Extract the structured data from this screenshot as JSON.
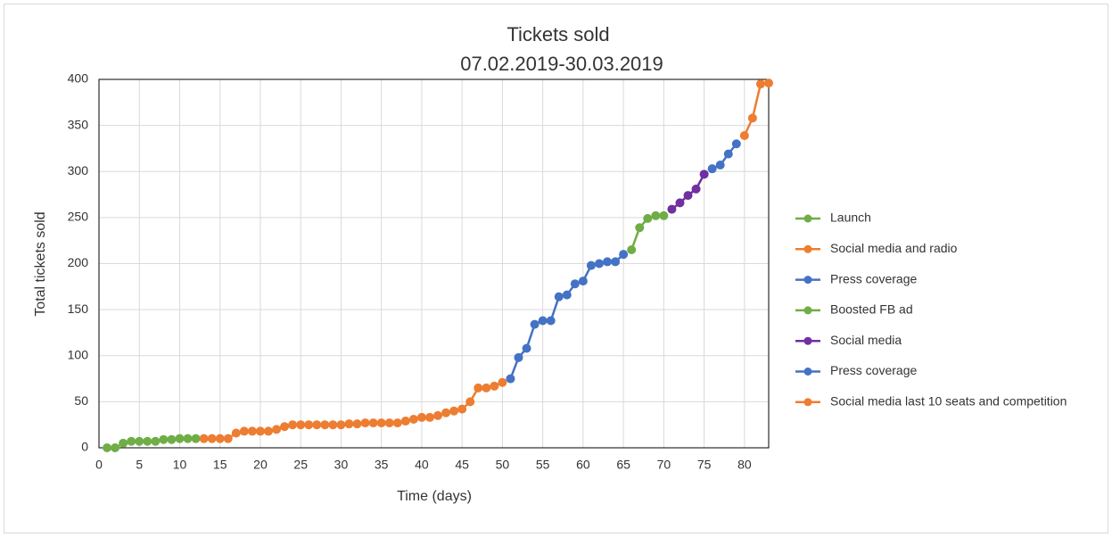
{
  "chart_data": {
    "type": "line",
    "title": "Tickets sold",
    "subtitle": "07.02.2019-30.03.2019",
    "x_label": "Time (days)",
    "y_label": "Total tickets sold",
    "xlim": [
      0,
      83
    ],
    "xticks": [
      0,
      5,
      10,
      15,
      20,
      25,
      30,
      35,
      40,
      45,
      50,
      55,
      60,
      65,
      70,
      75,
      80
    ],
    "ylim": [
      0,
      400
    ],
    "yticks": [
      0,
      50,
      100,
      150,
      200,
      250,
      300,
      350,
      400
    ],
    "grid": true,
    "legend": "right",
    "series": [
      {
        "name": "Launch",
        "color": "#70ad47",
        "x": [
          1,
          2,
          3,
          4,
          5,
          6,
          7,
          8,
          9,
          10,
          11,
          12
        ],
        "values": [
          0,
          0,
          5,
          7,
          7,
          7,
          7,
          9,
          9,
          10,
          10,
          10
        ]
      },
      {
        "name": "Social media and radio",
        "color": "#ed7d31",
        "x": [
          13,
          14,
          15,
          16,
          17,
          18,
          19,
          20,
          21,
          22,
          23,
          24,
          25,
          26,
          27,
          28,
          29,
          30,
          31,
          32,
          33,
          34,
          35,
          36,
          37,
          38,
          39,
          40,
          41,
          42,
          43,
          44,
          45,
          46,
          47,
          48,
          49,
          50
        ],
        "values": [
          10,
          10,
          10,
          10,
          16,
          18,
          18,
          18,
          18,
          20,
          23,
          25,
          25,
          25,
          25,
          25,
          25,
          25,
          26,
          26,
          27,
          27,
          27,
          27,
          27,
          29,
          31,
          33,
          33,
          35,
          38,
          40,
          42,
          50,
          65,
          65,
          67,
          71
        ]
      },
      {
        "name": "Press coverage",
        "color": "#4472c4",
        "x": [
          51,
          52,
          53,
          54,
          55,
          56,
          57,
          58,
          59,
          60,
          61,
          62,
          63,
          64,
          65
        ],
        "values": [
          75,
          98,
          108,
          134,
          138,
          138,
          164,
          166,
          178,
          181,
          198,
          200,
          202,
          202,
          210
        ]
      },
      {
        "name": "Boosted FB ad",
        "color": "#70ad47",
        "x": [
          66,
          67,
          68,
          69,
          70
        ],
        "values": [
          215,
          239,
          249,
          252,
          252
        ]
      },
      {
        "name": "Social media",
        "color": "#7030a0",
        "x": [
          71,
          72,
          73,
          74,
          75
        ],
        "values": [
          259,
          266,
          274,
          281,
          297
        ]
      },
      {
        "name": "Press coverage",
        "color": "#4472c4",
        "x": [
          76,
          77,
          78,
          79
        ],
        "values": [
          303,
          307,
          319,
          330
        ]
      },
      {
        "name": "Social media last 10 seats and competition",
        "color": "#ed7d31",
        "x": [
          80,
          81,
          82,
          83
        ],
        "values": [
          339,
          358,
          395,
          396
        ]
      }
    ]
  }
}
